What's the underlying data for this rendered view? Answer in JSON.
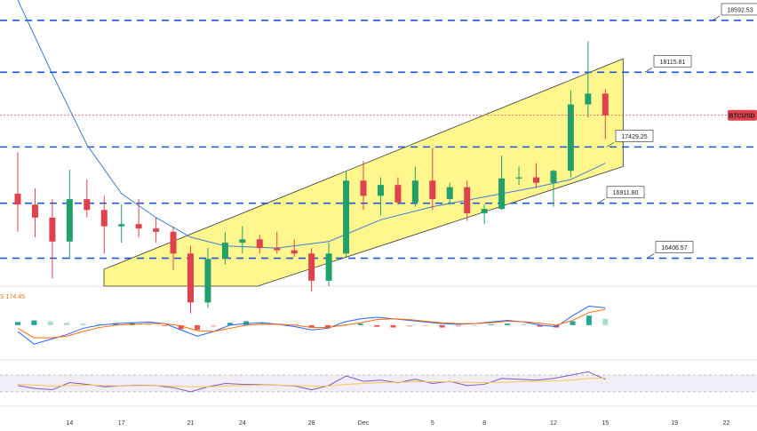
{
  "chart_data": {
    "type": "candlestick",
    "symbol": "BTCUSD",
    "price_axis": {
      "min": 16150,
      "max": 18780
    },
    "levels": [
      {
        "value": 18592.53,
        "label": "18592.53"
      },
      {
        "value": 18115.81,
        "label": "18115.81"
      },
      {
        "value": 17429.25,
        "label": "17429.25"
      },
      {
        "value": 16911.8,
        "label": "16911.80"
      },
      {
        "value": 16406.57,
        "label": "16406.57"
      }
    ],
    "current_price": 17720,
    "channel": {
      "lower_start": {
        "date": "Nov 18",
        "value": 16370
      },
      "lower_end": {
        "date": "Dec 15",
        "value": 17250
      },
      "upper_start": {
        "date": "Nov 18",
        "value": 16370
      },
      "upper_end": {
        "date": "Dec 15",
        "value": 18240
      },
      "fill_color": "#fff67a"
    },
    "x_ticks": [
      "14",
      "17",
      "21",
      "24",
      "28",
      "Dec",
      "5",
      "8",
      "12",
      "15",
      "19",
      "22"
    ],
    "candles": [
      {
        "date": "Nov 11",
        "open": 17000,
        "high": 17380,
        "low": 16650,
        "close": 16900
      },
      {
        "date": "Nov 12",
        "open": 16900,
        "high": 17050,
        "low": 16600,
        "close": 16780
      },
      {
        "date": "Nov 13",
        "open": 16780,
        "high": 16950,
        "low": 16220,
        "close": 16560
      },
      {
        "date": "Nov 14",
        "open": 16560,
        "high": 17220,
        "low": 16400,
        "close": 16950
      },
      {
        "date": "Nov 15",
        "open": 16950,
        "high": 17130,
        "low": 16780,
        "close": 16850
      },
      {
        "date": "Nov 16",
        "open": 16850,
        "high": 16980,
        "low": 16450,
        "close": 16700
      },
      {
        "date": "Nov 17",
        "open": 16700,
        "high": 16900,
        "low": 16550,
        "close": 16720
      },
      {
        "date": "Nov 18",
        "open": 16720,
        "high": 16950,
        "low": 16600,
        "close": 16680
      },
      {
        "date": "Nov 19",
        "open": 16680,
        "high": 16780,
        "low": 16550,
        "close": 16650
      },
      {
        "date": "Nov 20",
        "open": 16650,
        "high": 16700,
        "low": 16300,
        "close": 16450
      },
      {
        "date": "Nov 21",
        "open": 16450,
        "high": 16520,
        "low": 15900,
        "close": 16000
      },
      {
        "date": "Nov 22",
        "open": 16000,
        "high": 16500,
        "low": 15950,
        "close": 16400
      },
      {
        "date": "Nov 23",
        "open": 16400,
        "high": 16650,
        "low": 16350,
        "close": 16550
      },
      {
        "date": "Nov 24",
        "open": 16550,
        "high": 16700,
        "low": 16450,
        "close": 16580
      },
      {
        "date": "Nov 25",
        "open": 16580,
        "high": 16620,
        "low": 16450,
        "close": 16500
      },
      {
        "date": "Nov 26",
        "open": 16500,
        "high": 16650,
        "low": 16450,
        "close": 16480
      },
      {
        "date": "Nov 27",
        "open": 16480,
        "high": 16580,
        "low": 16420,
        "close": 16450
      },
      {
        "date": "Nov 28",
        "open": 16450,
        "high": 16500,
        "low": 16100,
        "close": 16200
      },
      {
        "date": "Nov 29",
        "open": 16200,
        "high": 16550,
        "low": 16150,
        "close": 16450
      },
      {
        "date": "Nov 30",
        "open": 16450,
        "high": 17200,
        "low": 16420,
        "close": 17120
      },
      {
        "date": "Dec 1",
        "open": 17120,
        "high": 17300,
        "low": 16850,
        "close": 16980
      },
      {
        "date": "Dec 2",
        "open": 16980,
        "high": 17150,
        "low": 16800,
        "close": 17080
      },
      {
        "date": "Dec 3",
        "open": 17080,
        "high": 17150,
        "low": 16900,
        "close": 16920
      },
      {
        "date": "Dec 4",
        "open": 16920,
        "high": 17250,
        "low": 16880,
        "close": 17120
      },
      {
        "date": "Dec 5",
        "open": 17120,
        "high": 17420,
        "low": 16850,
        "close": 16950
      },
      {
        "date": "Dec 6",
        "open": 16950,
        "high": 17100,
        "low": 16900,
        "close": 17060
      },
      {
        "date": "Dec 7",
        "open": 17060,
        "high": 17120,
        "low": 16750,
        "close": 16820
      },
      {
        "date": "Dec 8",
        "open": 16820,
        "high": 16900,
        "low": 16720,
        "close": 16860
      },
      {
        "date": "Dec 9",
        "open": 16860,
        "high": 17350,
        "low": 16850,
        "close": 17140
      },
      {
        "date": "Dec 10",
        "open": 17140,
        "high": 17250,
        "low": 17080,
        "close": 17150
      },
      {
        "date": "Dec 11",
        "open": 17150,
        "high": 17280,
        "low": 17050,
        "close": 17100
      },
      {
        "date": "Dec 12",
        "open": 17100,
        "high": 17220,
        "low": 16880,
        "close": 17210
      },
      {
        "date": "Dec 13",
        "open": 17210,
        "high": 17950,
        "low": 17150,
        "close": 17820
      },
      {
        "date": "Dec 14",
        "open": 17820,
        "high": 18400,
        "low": 17700,
        "close": 17920
      },
      {
        "date": "Dec 15",
        "open": 17920,
        "high": 17960,
        "low": 17500,
        "close": 17720
      }
    ],
    "ma_series": [
      {
        "date": "Nov 11",
        "value": 18780
      },
      {
        "date": "Nov 13",
        "value": 18100
      },
      {
        "date": "Nov 15",
        "value": 17450
      },
      {
        "date": "Nov 17",
        "value": 17000
      },
      {
        "date": "Nov 19",
        "value": 16780
      },
      {
        "date": "Nov 21",
        "value": 16600
      },
      {
        "date": "Nov 23",
        "value": 16520
      },
      {
        "date": "Nov 26",
        "value": 16500
      },
      {
        "date": "Nov 29",
        "value": 16560
      },
      {
        "date": "Dec 2",
        "value": 16760
      },
      {
        "date": "Dec 5",
        "value": 16880
      },
      {
        "date": "Dec 8",
        "value": 16970
      },
      {
        "date": "Dec 11",
        "value": 17060
      },
      {
        "date": "Dec 13",
        "value": 17130
      },
      {
        "date": "Dec 15",
        "value": 17280
      }
    ],
    "macd": {
      "label": "174.45",
      "range": [
        -220,
        230
      ],
      "histogram": [
        20,
        30,
        25,
        15,
        10,
        8,
        12,
        15,
        10,
        -5,
        -25,
        -30,
        -10,
        15,
        25,
        20,
        10,
        5,
        -15,
        -20,
        -5,
        10,
        -10,
        -15,
        -10,
        -5,
        -15,
        -10,
        -5,
        5,
        10,
        8,
        -10,
        -15,
        25,
        60,
        40
      ],
      "macd_line": [
        -40,
        -120,
        -90,
        -60,
        -20,
        0,
        10,
        15,
        20,
        10,
        -30,
        -70,
        -40,
        0,
        10,
        15,
        5,
        -10,
        -30,
        -20,
        20,
        40,
        50,
        40,
        30,
        20,
        10,
        5,
        10,
        20,
        30,
        20,
        0,
        -10,
        60,
        120,
        110
      ],
      "signal_line": [
        -20,
        -80,
        -80,
        -70,
        -40,
        -15,
        0,
        5,
        10,
        10,
        -5,
        -35,
        -40,
        -20,
        0,
        5,
        5,
        0,
        -15,
        -15,
        0,
        15,
        35,
        40,
        35,
        25,
        15,
        10,
        10,
        15,
        25,
        22,
        12,
        0,
        30,
        80,
        100
      ]
    },
    "rsi": {
      "band": [
        30,
        70
      ],
      "values": [
        45,
        38,
        35,
        52,
        48,
        42,
        44,
        46,
        45,
        40,
        30,
        42,
        50,
        48,
        47,
        46,
        44,
        35,
        45,
        68,
        55,
        58,
        52,
        60,
        50,
        55,
        45,
        48,
        62,
        60,
        58,
        62,
        70,
        78,
        60
      ],
      "ma": [
        48,
        46,
        44,
        45,
        46,
        45,
        44,
        45,
        45,
        44,
        42,
        42,
        44,
        45,
        46,
        46,
        45,
        44,
        44,
        48,
        50,
        52,
        53,
        54,
        54,
        54,
        53,
        52,
        53,
        54,
        55,
        56,
        58,
        62,
        63
      ]
    }
  }
}
